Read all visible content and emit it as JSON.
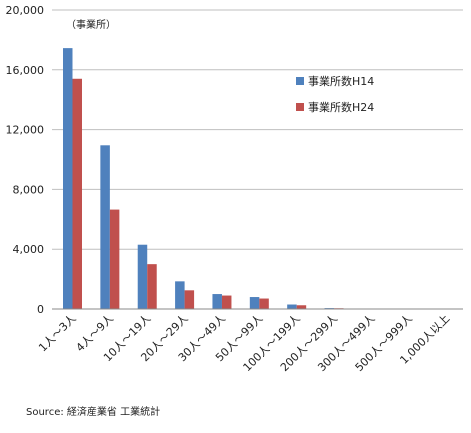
{
  "chart_data": {
    "type": "bar",
    "unit_label": "（事業所）",
    "categories": [
      "1人～3人",
      "4人～9人",
      "10人～19人",
      "20人～29人",
      "30人～49人",
      "50人～99人",
      "100人～199人",
      "200人～299人",
      "300人～499人",
      "500人～999人",
      "1,000人以上"
    ],
    "series": [
      {
        "name": "事業所数H14",
        "color": "#4F81BD",
        "values": [
          17450,
          10950,
          4300,
          1850,
          1000,
          800,
          300,
          60,
          30,
          15,
          8
        ]
      },
      {
        "name": "事業所数H24",
        "color": "#C0504D",
        "values": [
          15400,
          6650,
          3000,
          1250,
          900,
          700,
          250,
          50,
          25,
          12,
          6
        ]
      }
    ],
    "ylim": [
      0,
      20000
    ],
    "yticks": [
      "0",
      "4,000",
      "8,000",
      "12,000",
      "16,000",
      "20,000"
    ],
    "ytick_values": [
      0,
      4000,
      8000,
      12000,
      16000,
      20000
    ],
    "grid": true,
    "legend_position": "right"
  },
  "source": "Source: 経済産業省 工業統計"
}
